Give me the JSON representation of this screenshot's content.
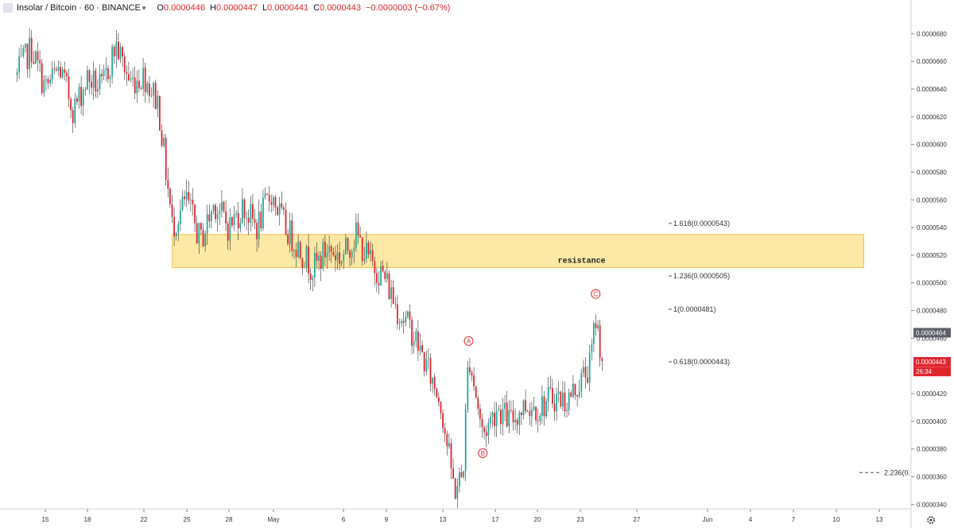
{
  "header": {
    "symbol": "Insolar / Bitcoin · 60 · BINANCE",
    "o_label": "O",
    "o_value": "0.0000446",
    "h_label": "H",
    "h_value": "0.0000447",
    "l_label": "L",
    "l_value": "0.0000441",
    "c_label": "C",
    "c_value": "0.0000443",
    "change": "−0.0000003 (−0.67%)",
    "icons": {
      "logo": "symbol-logo-icon",
      "chevron": "chevron-down-icon"
    },
    "colors": {
      "down": "#e0262d"
    }
  },
  "chart_data": {
    "type": "candlestick",
    "x_axis_ticks": [
      "15",
      "18",
      "22",
      "25",
      "28",
      "May",
      "6",
      "9",
      "13",
      "17",
      "20",
      "23",
      "27",
      "Jun",
      "4",
      "7",
      "10",
      "13"
    ],
    "y_axis_ticks": [
      "0.0000680",
      "0.0000660",
      "0.0000640",
      "0.0000620",
      "0.0000600",
      "0.0000580",
      "0.0000560",
      "0.0000540",
      "0.0000520",
      "0.0000500",
      "0.0000480",
      "0.0000460",
      "0.0000420",
      "0.0000400",
      "0.0000380",
      "0.0000360",
      "0.0000340"
    ],
    "ylim": [
      3.31e-05,
      6.98e-05
    ],
    "price_labels": [
      {
        "text": "0.0000464",
        "value": 4.64e-05,
        "color": "#5d606b"
      },
      {
        "text": "0.0000443",
        "value": 4.43e-05,
        "color": "#e0262d"
      },
      {
        "text": "26:34",
        "value": 4.36e-05,
        "color": "#e0262d"
      }
    ],
    "colors": {
      "up": "#26a69a",
      "down": "#e0262d",
      "wick": "#333333",
      "zone": "#fde8a6",
      "zone_border": "#f2c14e",
      "wave": "#e0262d"
    },
    "zone": {
      "label": "resistance",
      "from": "24",
      "to": "Jun 12",
      "top": 5.35e-05,
      "bottom": 5.11e-05
    },
    "fib_levels": [
      {
        "label": "1.618(0.0000543)",
        "value": 5.43e-05
      },
      {
        "label": "1.236(0.0000505)",
        "value": 5.05e-05
      },
      {
        "label": "1(0.0000481)",
        "value": 4.81e-05
      },
      {
        "label": "0.618(0.0000443)",
        "value": 4.43e-05
      },
      {
        "label": "2.236(0.",
        "value": 3.63e-05,
        "dashed": true
      }
    ],
    "wave_labels": [
      {
        "label": "A",
        "at": "May 15",
        "value": 4.58e-05
      },
      {
        "label": "B",
        "at": "May 16",
        "value": 3.77e-05
      },
      {
        "label": "C",
        "at": "May 24",
        "value": 4.92e-05
      }
    ],
    "path": [
      [
        "Apr 13",
        6.5e-05
      ],
      [
        "Apr 14",
        6.7e-05
      ],
      [
        "Apr 15",
        6.4e-05
      ],
      [
        "Apr 16",
        6.55e-05
      ],
      [
        "Apr 17",
        6.25e-05
      ],
      [
        "Apr 18",
        6.48e-05
      ],
      [
        "Apr 19",
        6.4e-05
      ],
      [
        "Apr 20",
        6.72e-05
      ],
      [
        "Apr 21",
        6.45e-05
      ],
      [
        "Apr 22",
        6.5e-05
      ],
      [
        "Apr 23",
        6.3e-05
      ],
      [
        "Apr 23.5",
        5.85e-05
      ],
      [
        "Apr 24",
        5.4e-05
      ],
      [
        "Apr 25",
        5.6e-05
      ],
      [
        "Apr 26",
        5.3e-05
      ],
      [
        "Apr 27",
        5.58e-05
      ],
      [
        "Apr 28",
        5.4e-05
      ],
      [
        "Apr 29",
        5.55e-05
      ],
      [
        "Apr 30",
        5.4e-05
      ],
      [
        "May 1",
        5.65e-05
      ],
      [
        "May 2",
        5.4e-05
      ],
      [
        "May 3",
        5.25e-05
      ],
      [
        "May 4",
        5.1e-05
      ],
      [
        "May 5",
        5.25e-05
      ],
      [
        "May 6",
        5.18e-05
      ],
      [
        "May 7",
        5.35e-05
      ],
      [
        "May 8",
        5.15e-05
      ],
      [
        "May 9",
        5.05e-05
      ],
      [
        "May 10",
        4.8e-05
      ],
      [
        "May 11",
        4.65e-05
      ],
      [
        "May 12",
        4.4e-05
      ],
      [
        "May 13",
        4.15e-05
      ],
      [
        "May 13.6",
        3.75e-05
      ],
      [
        "May 14",
        3.5e-05
      ],
      [
        "May 14.6",
        3.62e-05
      ],
      [
        "May 15",
        4.5e-05
      ],
      [
        "May 15.5",
        4.2e-05
      ],
      [
        "May 16",
        3.9e-05
      ],
      [
        "May 17",
        4.1e-05
      ],
      [
        "May 18",
        4e-05
      ],
      [
        "May 19",
        4.12e-05
      ],
      [
        "May 20",
        4.1e-05
      ],
      [
        "May 21",
        4.18e-05
      ],
      [
        "May 22",
        4.15e-05
      ],
      [
        "May 23",
        4.3e-05
      ],
      [
        "May 23.6",
        4.4e-05
      ],
      [
        "May 24",
        4.75e-05
      ],
      [
        "May 24.5",
        4.43e-05
      ]
    ]
  }
}
